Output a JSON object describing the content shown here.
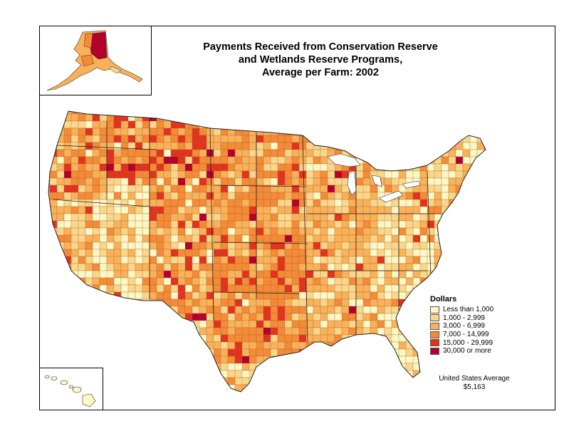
{
  "title": {
    "line1": "Payments Received from Conservation Reserve",
    "line2": "and Wetlands Reserve Programs,",
    "line3": "Average per Farm:  2002"
  },
  "legend": {
    "title": "Dollars",
    "items": [
      {
        "label": "Less than 1,000",
        "color": "#fff7c4"
      },
      {
        "label": "1,000 - 2,999",
        "color": "#fdd68a"
      },
      {
        "label": "3,000 - 6,999",
        "color": "#fbb159"
      },
      {
        "label": "7,000 - 14,999",
        "color": "#f68a36"
      },
      {
        "label": "15,000 - 29,999",
        "color": "#e4321e"
      },
      {
        "label": "30,000 or more",
        "color": "#b3002d"
      }
    ]
  },
  "average": {
    "label": "United States Average",
    "value": "$5,163"
  }
}
